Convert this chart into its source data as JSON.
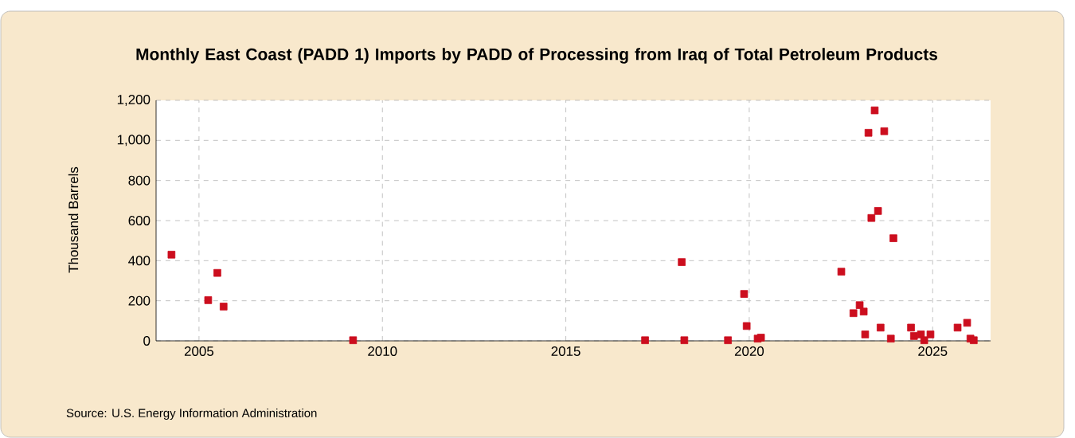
{
  "chart_data": {
    "type": "scatter",
    "title": "Monthly East Coast (PADD 1) Imports by PADD of Processing from Iraq of Total Petroleum Products",
    "ylabel": "Thousand Barrels",
    "annotations": [
      "Source: U.S. Energy Information Administration"
    ],
    "x": [
      2004.25,
      2005.25,
      2005.5,
      2005.67,
      2009.2,
      2017.16,
      2018.16,
      2018.23,
      2019.42,
      2019.86,
      2019.93,
      2020.23,
      2020.32,
      2022.51,
      2022.84,
      2023.01,
      2023.12,
      2023.16,
      2023.25,
      2023.33,
      2023.42,
      2023.51,
      2023.58,
      2023.68,
      2023.86,
      2023.93,
      2024.41,
      2024.49,
      2024.68,
      2024.77,
      2024.94,
      2025.68,
      2025.94,
      2026.03,
      2026.12
    ],
    "values": [
      430,
      203,
      339,
      171,
      3,
      3,
      393,
      3,
      3,
      234,
      74,
      11,
      16,
      345,
      138,
      178,
      146,
      32,
      1038,
      613,
      1150,
      648,
      66,
      1046,
      11,
      512,
      66,
      24,
      32,
      3,
      32,
      66,
      90,
      11,
      3
    ],
    "color": "#cc0e1e",
    "marker": "square",
    "xlim": [
      2003.83,
      2026.58
    ],
    "ylim": [
      0,
      1200
    ],
    "xticks": [
      2005,
      2010,
      2015,
      2020,
      2025
    ],
    "yticks": [
      {
        "value": 0,
        "label": "0"
      },
      {
        "value": 200,
        "label": "200"
      },
      {
        "value": 400,
        "label": "400"
      },
      {
        "value": 600,
        "label": "600"
      },
      {
        "value": 800,
        "label": "800"
      },
      {
        "value": 1000,
        "label": "1,000"
      },
      {
        "value": 1200,
        "label": "1,200"
      }
    ],
    "grid": true
  }
}
